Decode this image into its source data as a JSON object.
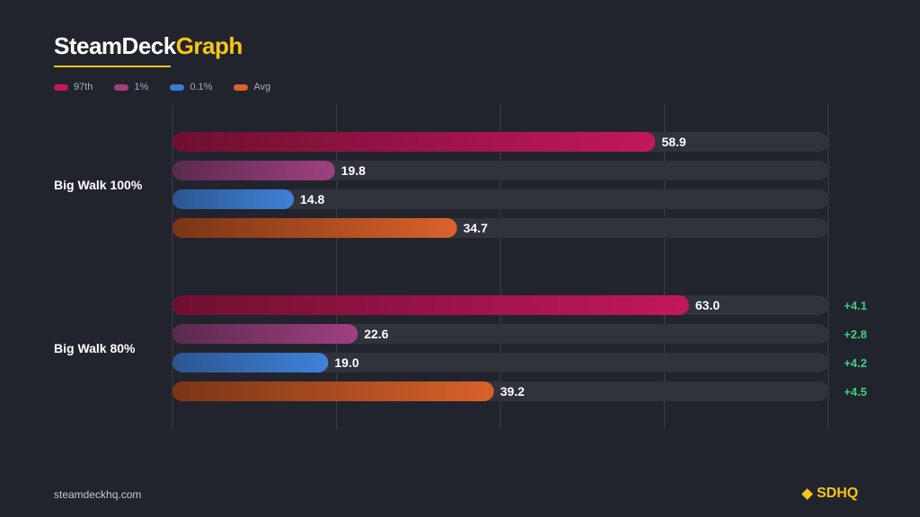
{
  "brand": {
    "part1": "SteamDeck",
    "part2": "Graph"
  },
  "footer": {
    "site": "steamdeckhq.com",
    "logo": "SDHQ"
  },
  "colors": {
    "background": "#22242d",
    "track": "#30323c",
    "gridline": "#3a3c47",
    "accent": "#f5c518",
    "diff_positive": "#3ecf7a"
  },
  "legend": [
    {
      "label": "97th",
      "color": "#c2185b"
    },
    {
      "label": "1%",
      "color": "#a04080"
    },
    {
      "label": "0.1%",
      "color": "#3a7bd5"
    },
    {
      "label": "Avg",
      "color": "#d9622b"
    }
  ],
  "chart_data": {
    "type": "bar",
    "orientation": "horizontal",
    "xlim": [
      0,
      80
    ],
    "grid": true,
    "legend_position": "top-left",
    "categories": [
      "Big Walk 100%",
      "Big Walk 80%"
    ],
    "series": [
      {
        "name": "97th",
        "values": [
          58.9,
          63.0
        ],
        "labels": [
          "58.9",
          "63.0"
        ],
        "diffs": [
          "",
          "+4.1"
        ],
        "color_start": "#6e0f32",
        "color_end": "#c2185b"
      },
      {
        "name": "1%",
        "values": [
          19.8,
          22.6
        ],
        "labels": [
          "19.8",
          "22.6"
        ],
        "diffs": [
          "",
          "+2.8"
        ],
        "color_start": "#5a2a4e",
        "color_end": "#a04080"
      },
      {
        "name": "0.1%",
        "values": [
          14.8,
          19.0
        ],
        "labels": [
          "14.8",
          "19.0"
        ],
        "diffs": [
          "",
          "+4.2"
        ],
        "color_start": "#2c5590",
        "color_end": "#3f82d8"
      },
      {
        "name": "Avg",
        "values": [
          34.7,
          39.2
        ],
        "labels": [
          "34.7",
          "39.2"
        ],
        "diffs": [
          "",
          "+4.5"
        ],
        "color_start": "#7a3515",
        "color_end": "#d9622b"
      }
    ]
  }
}
